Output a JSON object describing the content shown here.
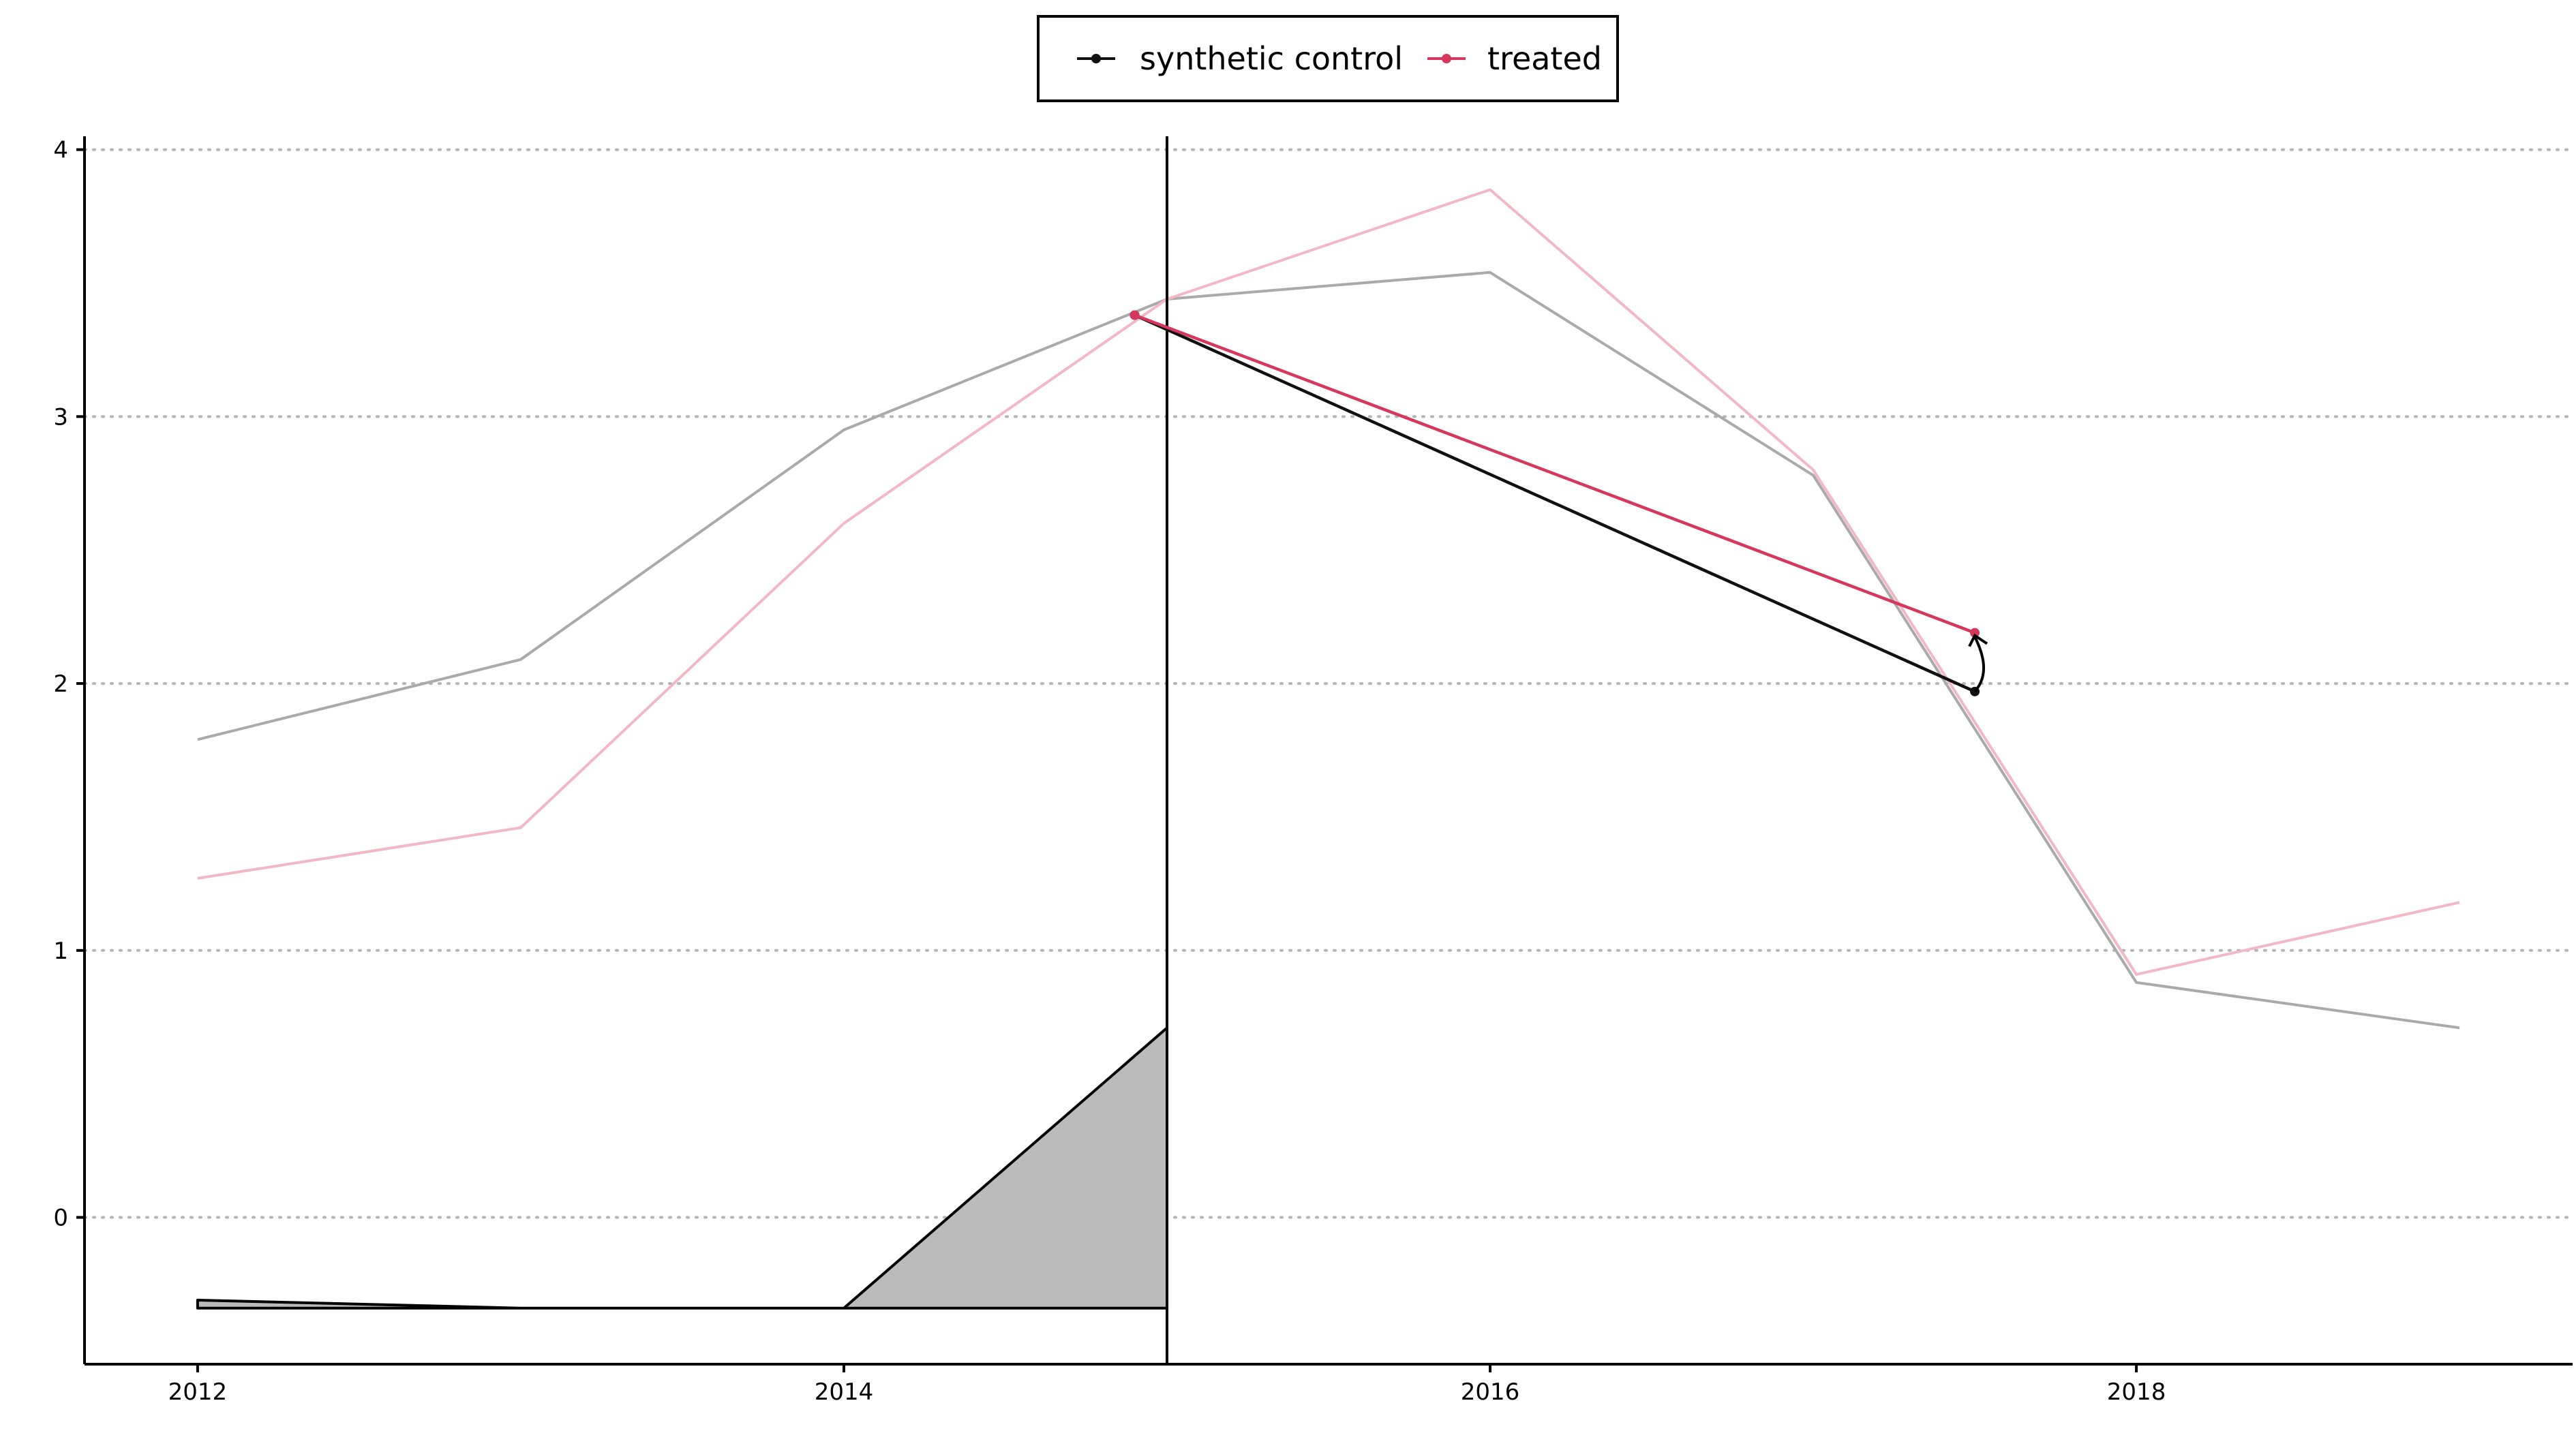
{
  "chart_data": {
    "type": "line",
    "title": "",
    "xlabel": "",
    "ylabel": "",
    "xlim": [
      2011.65,
      2019.35
    ],
    "ylim": [
      -0.55,
      4.05
    ],
    "x_ticks": [
      2012,
      2014,
      2016,
      2018
    ],
    "y_ticks": [
      0,
      1,
      2,
      3,
      4
    ],
    "grid": "horizontal dotted",
    "legend_position": "top-center",
    "treatment_time": 2015,
    "legend": [
      {
        "label": "synthetic control",
        "color": "#111111"
      },
      {
        "label": "treated",
        "color": "#d6375c"
      }
    ],
    "background_series": [
      {
        "role": "synthetic control",
        "color": "#aaaaaa",
        "x": [
          2012,
          2013,
          2014,
          2015,
          2016,
          2017,
          2018,
          2019
        ],
        "y": [
          1.79,
          2.09,
          2.95,
          3.44,
          3.54,
          2.78,
          0.88,
          0.71
        ]
      },
      {
        "role": "treated",
        "color": "#f2b8c6",
        "x": [
          2012,
          2013,
          2014,
          2015,
          2016,
          2017,
          2018,
          2019
        ],
        "y": [
          1.27,
          1.46,
          2.6,
          3.44,
          3.85,
          2.8,
          0.91,
          1.18
        ]
      }
    ],
    "highlight_series": [
      {
        "role": "synthetic control",
        "color": "#111111",
        "x": [
          2014.9,
          2017.5
        ],
        "y": [
          3.38,
          1.97
        ]
      },
      {
        "role": "treated",
        "color": "#d6375c",
        "x": [
          2014.9,
          2017.5
        ],
        "y": [
          3.38,
          2.19
        ]
      }
    ],
    "weight_area": {
      "fill": "#bbbbbb",
      "x": [
        2012,
        2013,
        2014,
        2015
      ],
      "y": [
        -0.31,
        -0.34,
        -0.34,
        0.71
      ],
      "baseline": -0.34
    },
    "gap_arrow": {
      "x": 2017.5,
      "from": 1.97,
      "to": 2.19
    }
  }
}
